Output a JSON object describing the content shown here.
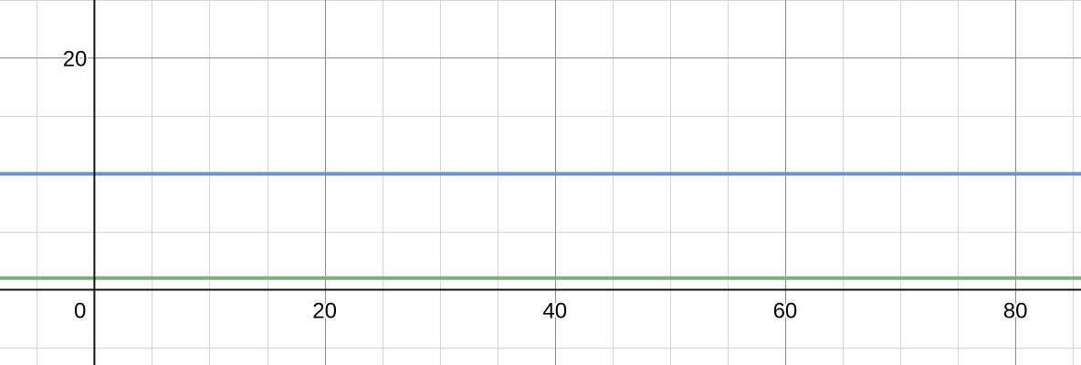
{
  "chart_data": {
    "type": "line",
    "title": "",
    "xlabel": "",
    "ylabel": "",
    "xlim": [
      -8.2,
      85.7
    ],
    "ylim": [
      -6.5,
      25
    ],
    "minor_step": 5,
    "major_step": 20,
    "x_ticks": [
      {
        "value": 0,
        "label": "0"
      },
      {
        "value": 20,
        "label": "20"
      },
      {
        "value": 40,
        "label": "40"
      },
      {
        "value": 60,
        "label": "60"
      },
      {
        "value": 80,
        "label": "80"
      }
    ],
    "y_ticks": [
      {
        "value": 20,
        "label": "20"
      }
    ],
    "grid": true,
    "series": [
      {
        "color": "#6d93c4",
        "x": [
          -8.2,
          85.7
        ],
        "y": [
          10,
          10
        ]
      },
      {
        "color": "#80ad7f",
        "x": [
          -8.2,
          85.7
        ],
        "y": [
          1,
          1
        ]
      }
    ]
  }
}
